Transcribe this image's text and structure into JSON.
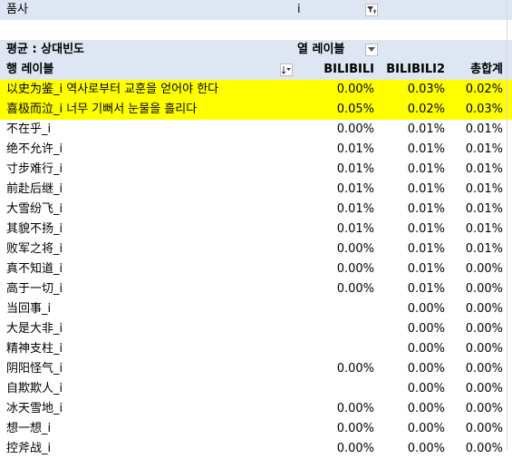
{
  "filter": {
    "label": "품사",
    "value": "i"
  },
  "pivot": {
    "value_label": "평균 : 상대빈도",
    "col_labels_title": "열 레이블",
    "row_labels_title": "행 레이블",
    "columns": [
      "BILIBILI",
      "BILIBILI2",
      "총합계"
    ]
  },
  "colors": {
    "header_bg": "#dde6f2",
    "highlight": "#ffff00",
    "grid": "#d6d6d6"
  },
  "rows": [
    {
      "label": "以史为鉴_i 역사로부터 교훈을 얻어야 한다",
      "values": [
        "0.00%",
        "0.03%",
        "0.02%"
      ],
      "highlight": true
    },
    {
      "label": "喜极而泣_i 너무 기뻐서 눈물을 흘리다",
      "values": [
        "0.05%",
        "0.02%",
        "0.03%"
      ],
      "highlight": true
    },
    {
      "label": "不在乎_i",
      "values": [
        "0.00%",
        "0.01%",
        "0.01%"
      ]
    },
    {
      "label": "绝不允许_i",
      "values": [
        "0.01%",
        "0.01%",
        "0.01%"
      ]
    },
    {
      "label": "寸步难行_i",
      "values": [
        "0.01%",
        "0.01%",
        "0.01%"
      ]
    },
    {
      "label": "前赴后继_i",
      "values": [
        "0.01%",
        "0.01%",
        "0.01%"
      ]
    },
    {
      "label": "大雪纷飞_i",
      "values": [
        "0.01%",
        "0.01%",
        "0.01%"
      ]
    },
    {
      "label": "其貌不扬_i",
      "values": [
        "0.01%",
        "0.01%",
        "0.01%"
      ]
    },
    {
      "label": "败军之将_i",
      "values": [
        "0.00%",
        "0.01%",
        "0.01%"
      ]
    },
    {
      "label": "真不知道_i",
      "values": [
        "0.00%",
        "0.01%",
        "0.00%"
      ]
    },
    {
      "label": "高于一切_i",
      "values": [
        "0.00%",
        "0.01%",
        "0.00%"
      ]
    },
    {
      "label": "当回事_i",
      "values": [
        "",
        "0.00%",
        "0.00%"
      ]
    },
    {
      "label": "大是大非_i",
      "values": [
        "",
        "0.00%",
        "0.00%"
      ]
    },
    {
      "label": "精神支柱_i",
      "values": [
        "",
        "0.00%",
        "0.00%"
      ]
    },
    {
      "label": "阴阳怪气_i",
      "values": [
        "0.00%",
        "0.00%",
        "0.00%"
      ]
    },
    {
      "label": "自欺欺人_i",
      "values": [
        "",
        "0.00%",
        "0.00%"
      ]
    },
    {
      "label": "冰天雪地_i",
      "values": [
        "0.00%",
        "0.00%",
        "0.00%"
      ]
    },
    {
      "label": "想一想_i",
      "values": [
        "0.00%",
        "0.00%",
        "0.00%"
      ]
    },
    {
      "label": "控斧战_i",
      "values": [
        "0.00%",
        "0.00%",
        "0.00%"
      ]
    }
  ]
}
